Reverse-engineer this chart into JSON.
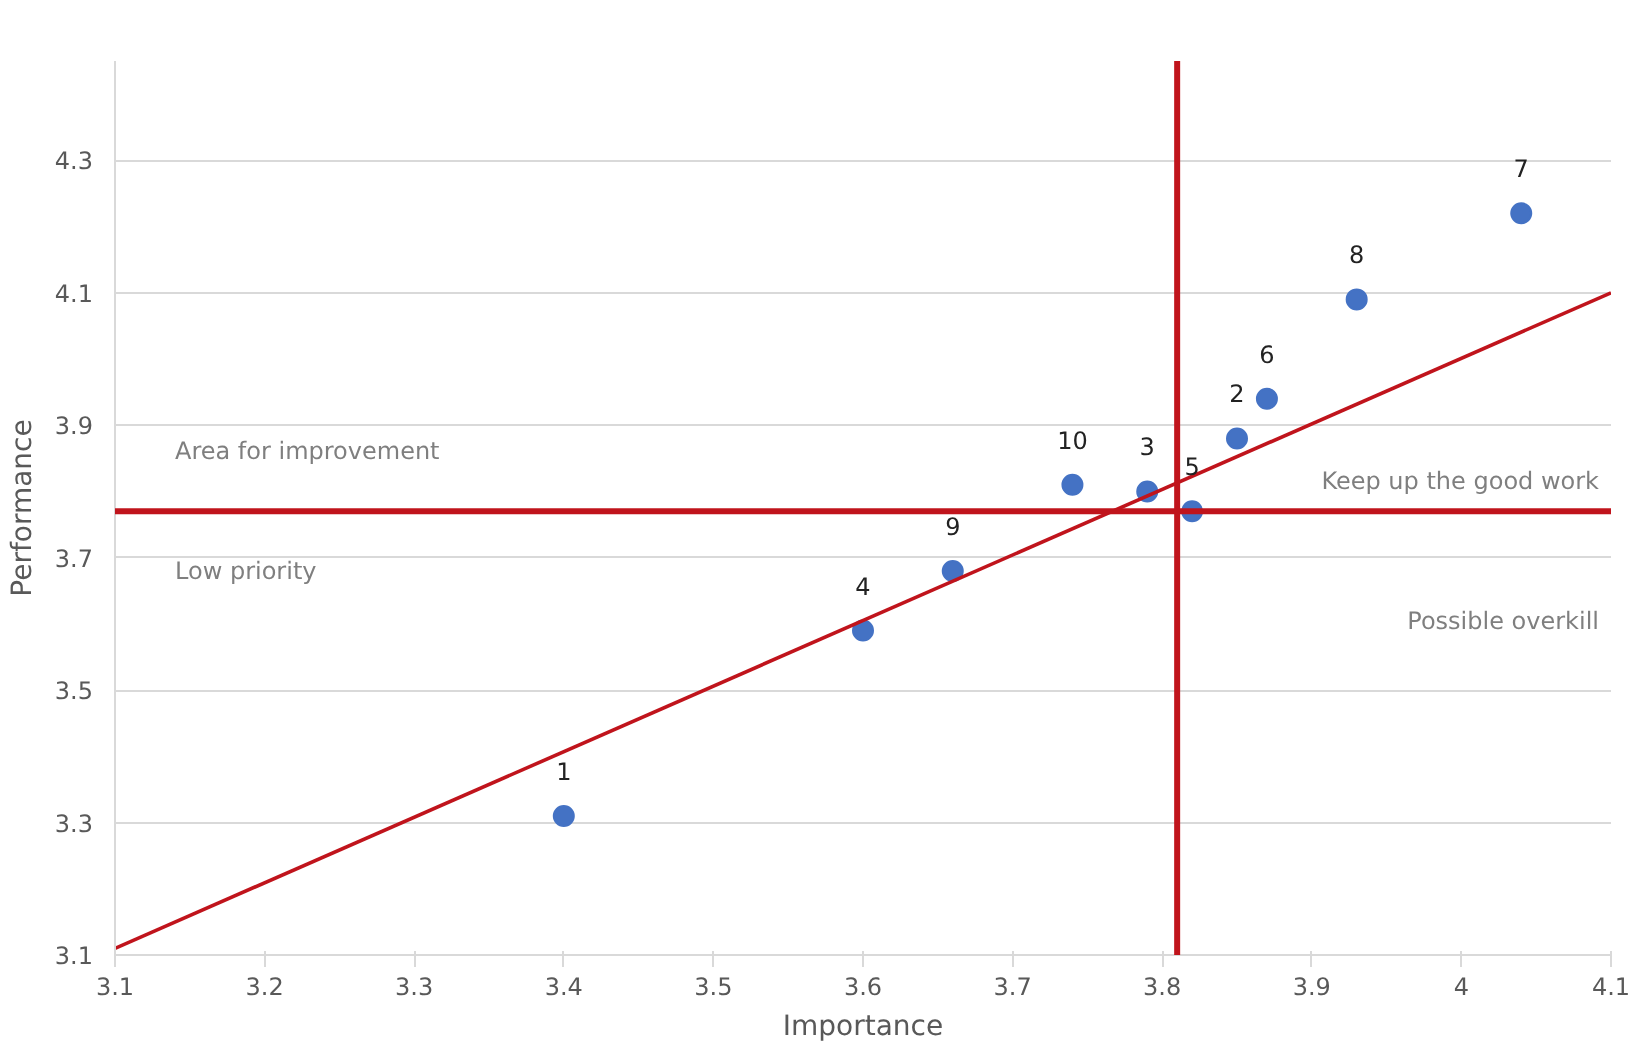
{
  "chart_data": {
    "type": "scatter",
    "xlabel": "Importance",
    "ylabel": "Performance",
    "xlim": [
      3.1,
      4.1
    ],
    "ylim": [
      3.1,
      4.45
    ],
    "xticks": [
      3.1,
      3.2,
      3.3,
      3.4,
      3.5,
      3.6,
      3.7,
      3.8,
      3.9,
      4,
      4.1
    ],
    "yticks": [
      3.1,
      3.3,
      3.5,
      3.7,
      3.9,
      4.1,
      4.3
    ],
    "grid": "y",
    "marker": "circle",
    "series": [
      {
        "color": "#4472c4",
        "x": [
          3.4,
          3.85,
          3.79,
          3.6,
          3.82,
          3.87,
          4.04,
          3.93,
          3.66,
          3.74
        ],
        "values": [
          3.31,
          3.88,
          3.8,
          3.59,
          3.77,
          3.94,
          4.22,
          4.09,
          3.68,
          3.81
        ]
      },
      {
        "type": "line",
        "color": "#c0141c",
        "marker": "none",
        "line_style": "solid",
        "x": [
          3.1,
          4.1
        ],
        "values": [
          3.11,
          4.1
        ]
      }
    ],
    "ref_lines": [
      {
        "axis": "x",
        "value": 3.81,
        "color": "#c0141c"
      },
      {
        "axis": "y",
        "value": 3.77,
        "color": "#c0141c"
      }
    ],
    "annotations": [
      {
        "text": "1",
        "x": 3.4,
        "y": 3.31
      },
      {
        "text": "2",
        "x": 3.85,
        "y": 3.88
      },
      {
        "text": "3",
        "x": 3.79,
        "y": 3.8
      },
      {
        "text": "4",
        "x": 3.6,
        "y": 3.59
      },
      {
        "text": "5",
        "x": 3.82,
        "y": 3.77
      },
      {
        "text": "6",
        "x": 3.87,
        "y": 3.94
      },
      {
        "text": "7",
        "x": 4.04,
        "y": 4.22
      },
      {
        "text": "8",
        "x": 3.93,
        "y": 4.09
      },
      {
        "text": "9",
        "x": 3.66,
        "y": 3.68
      },
      {
        "text": "10",
        "x": 3.74,
        "y": 3.81
      },
      "Area for improvement",
      "Low priority",
      "Keep up the good work",
      "Possible overkill"
    ]
  }
}
